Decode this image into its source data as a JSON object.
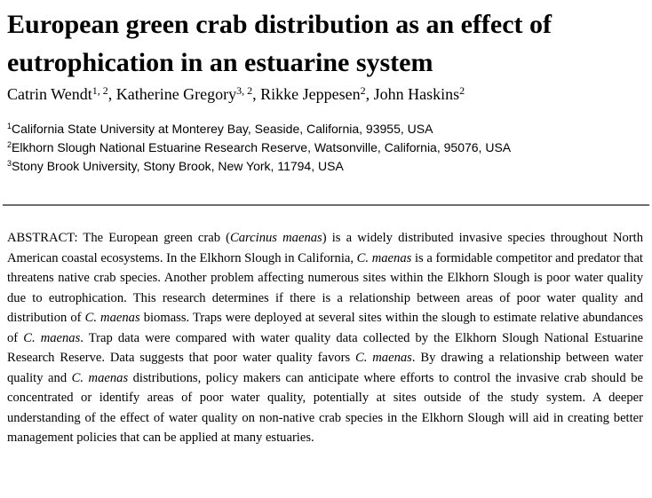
{
  "title": "European green crab distribution as an effect of eutrophication in an estuarine system",
  "authors": [
    {
      "name": "Catrin Wendt",
      "affil": "1, 2",
      "sep": ", "
    },
    {
      "name": "Katherine Gregory",
      "affil": "3, 2",
      "sep": ", "
    },
    {
      "name": "Rikke Jeppesen",
      "affil": "2",
      "sep": ", "
    },
    {
      "name": "John Haskins",
      "affil": "2",
      "sep": ""
    }
  ],
  "affiliations": [
    {
      "num": "1",
      "text": "California State University at Monterey Bay, Seaside, California, 93955, USA"
    },
    {
      "num": "2",
      "text": "Elkhorn Slough National Estuarine Research Reserve, Watsonville, California, 95076, USA"
    },
    {
      "num": "3",
      "text": "Stony Brook University, Stony Brook, New York, 11794, USA"
    }
  ],
  "abstract": {
    "segments": [
      {
        "t": "ABSTRACT: The European green crab (",
        "i": false
      },
      {
        "t": "Carcinus maenas",
        "i": true
      },
      {
        "t": ") is a widely distributed invasive species throughout North American coastal ecosystems. In the Elkhorn Slough in California, ",
        "i": false
      },
      {
        "t": "C. maenas",
        "i": true
      },
      {
        "t": " is a formidable competitor and predator that threatens native crab species. Another problem affecting numerous sites within the Elkhorn Slough is poor water quality due to eutrophication. This research determines if there is a relationship between areas of poor water quality and distribution of ",
        "i": false
      },
      {
        "t": "C. maenas",
        "i": true
      },
      {
        "t": " biomass. Traps were deployed at several sites within the slough to estimate relative abundances of ",
        "i": false
      },
      {
        "t": "C. maenas",
        "i": true
      },
      {
        "t": ". Trap data were compared with water quality data collected by the Elkhorn Slough National Estuarine Research Reserve. Data suggests that poor water quality favors ",
        "i": false
      },
      {
        "t": "C. maenas",
        "i": true
      },
      {
        "t": ". By drawing a relationship between water quality and ",
        "i": false
      },
      {
        "t": "C. maenas",
        "i": true
      },
      {
        "t": " distributions, policy makers can anticipate where efforts to control the invasive crab should be concentrated or identify areas of poor water quality, potentially at sites outside of the study system. A deeper understanding of the effect of water quality on non-native crab species in the Elkhorn Slough will aid in creating better management policies that can be applied at many estuaries.",
        "i": false
      }
    ]
  }
}
